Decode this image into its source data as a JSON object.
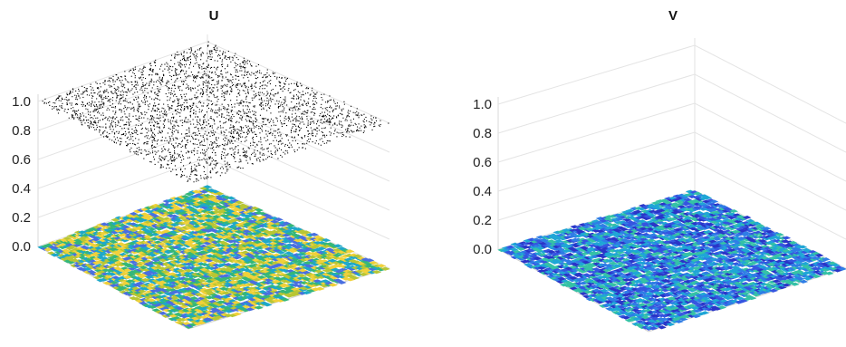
{
  "chart_data": [
    {
      "type": "surface",
      "title": "U",
      "zlim": [
        0,
        1
      ],
      "zticks": [
        "0.0",
        "0.2",
        "0.4",
        "0.6",
        "0.8",
        "1.0"
      ],
      "grid": true,
      "surface_level": 0.0,
      "surface_colors": [
        "#4a6fe0",
        "#1ea8c9",
        "#35b779",
        "#b8c634",
        "#f0d13a"
      ],
      "scatter_plane_level": 1.0,
      "scatter_color": "#000000"
    },
    {
      "type": "surface",
      "title": "V",
      "zlim": [
        0,
        1
      ],
      "zticks": [
        "0.0",
        "0.2",
        "0.4",
        "0.6",
        "0.8",
        "1.0"
      ],
      "grid": true,
      "surface_level": 0.0,
      "surface_colors": [
        "#2a35c8",
        "#3555e0",
        "#2f7de6",
        "#1fa6d6",
        "#35c2a6"
      ]
    }
  ]
}
